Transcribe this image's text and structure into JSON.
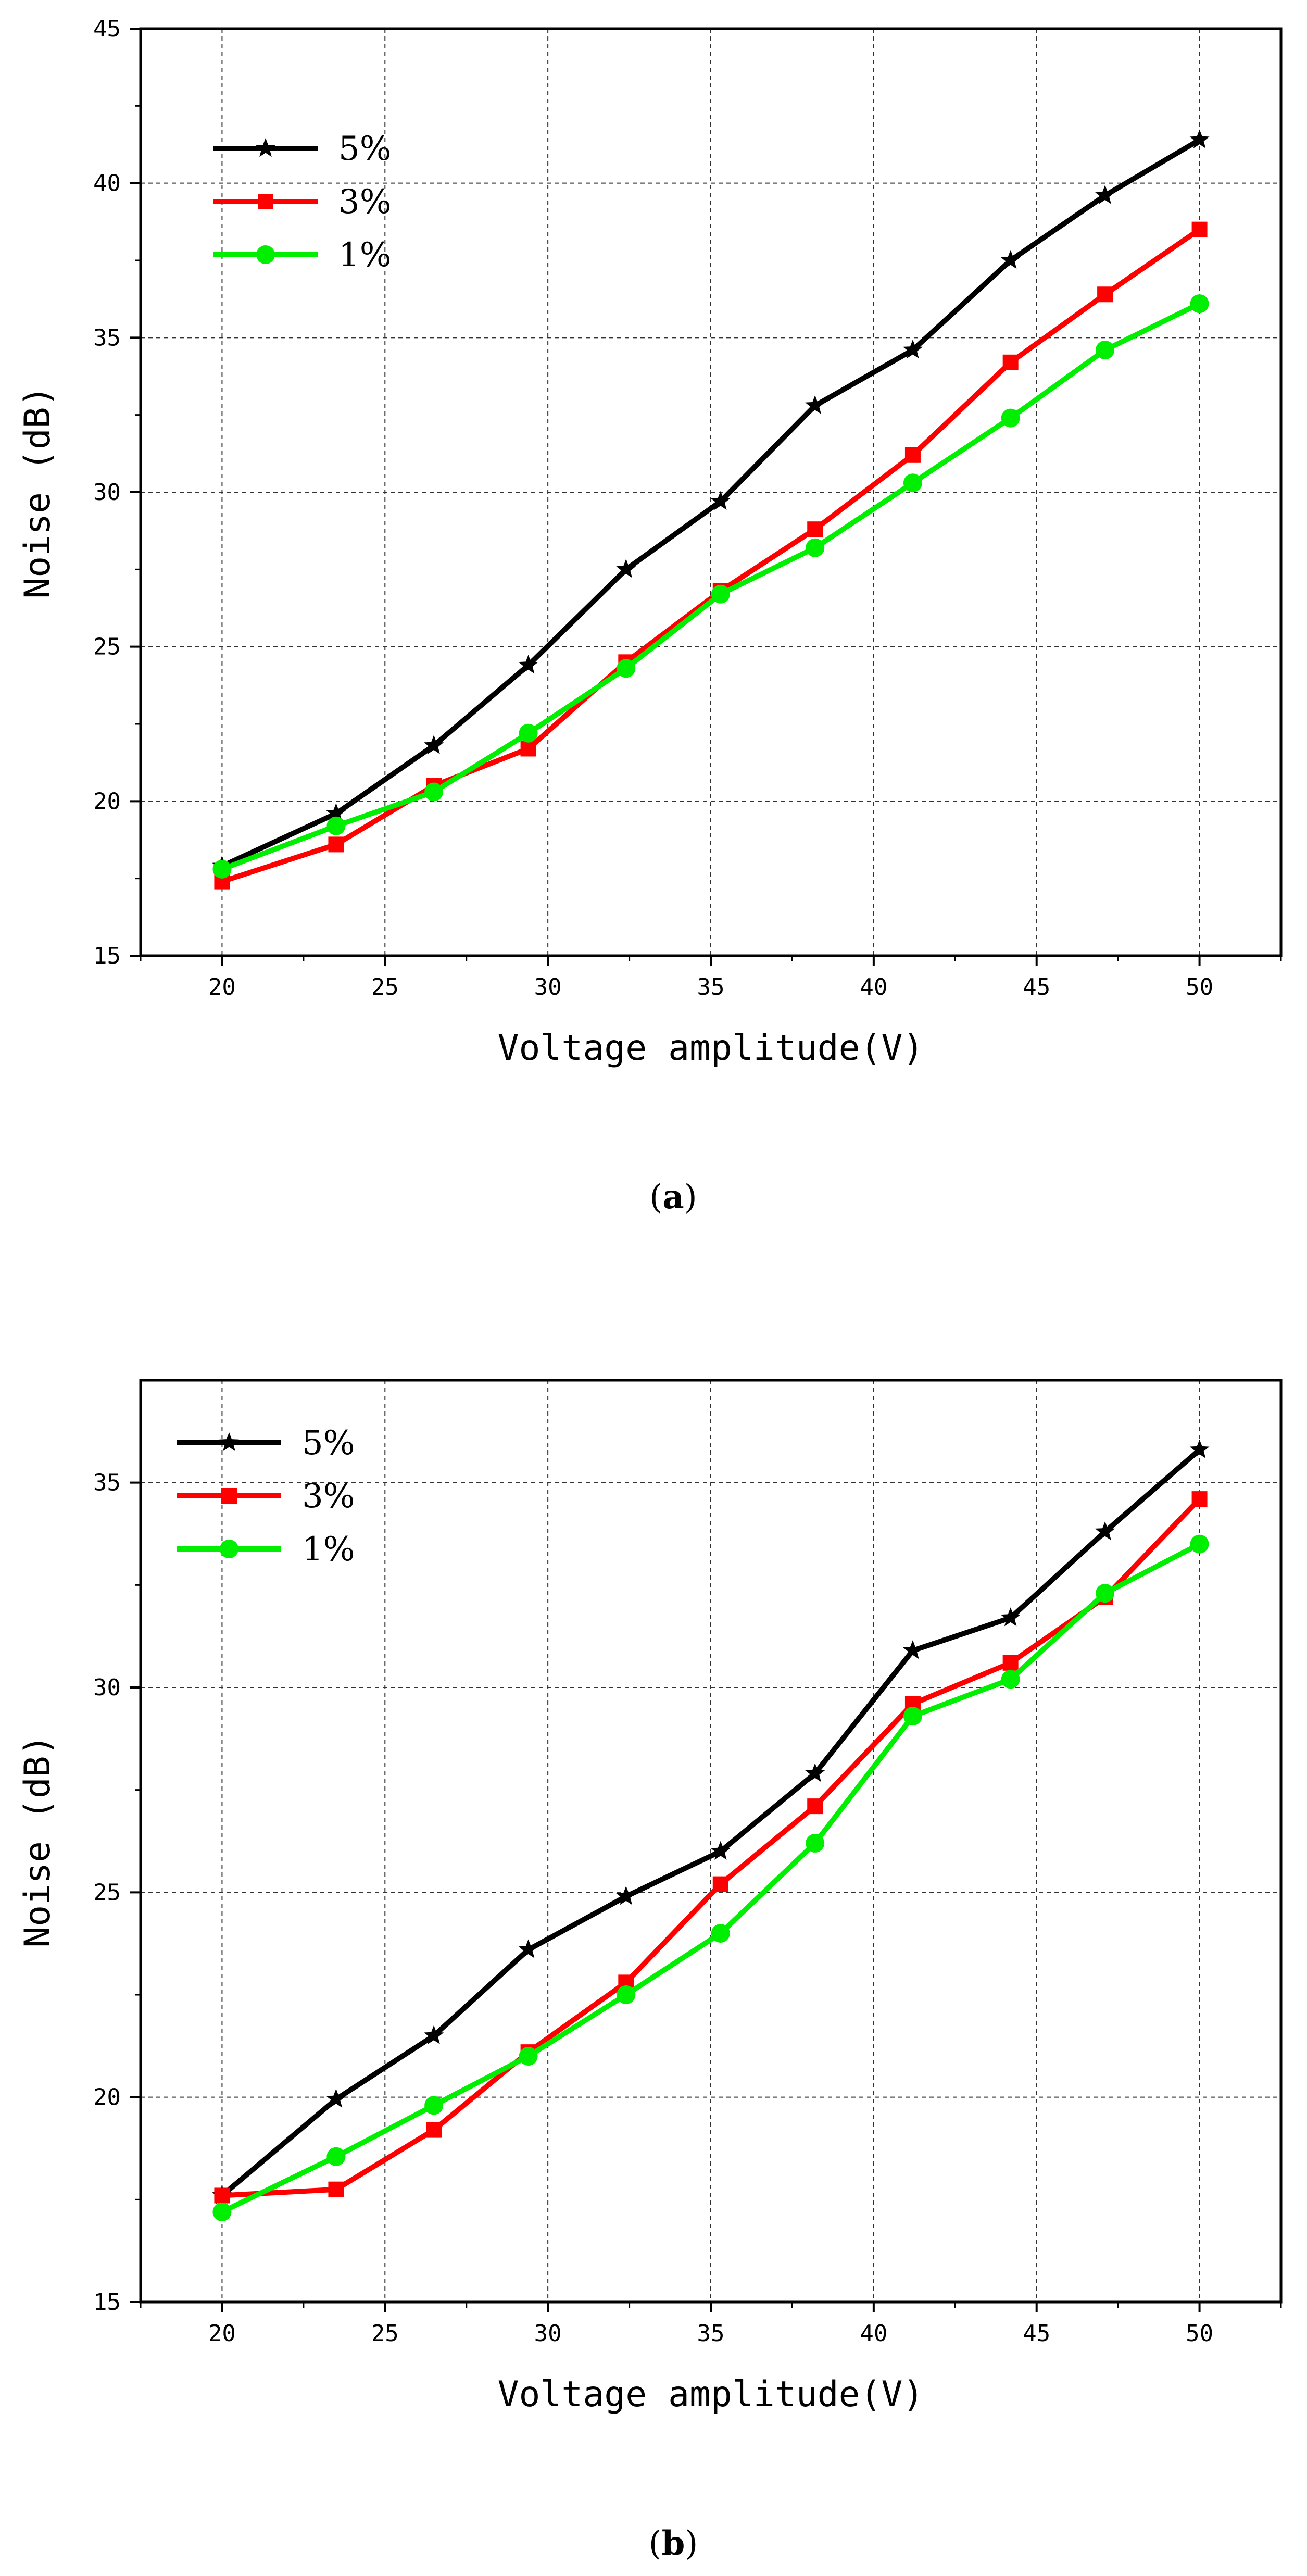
{
  "chart_data": [
    {
      "type": "line",
      "caption_open": "(",
      "caption_letter": "a",
      "caption_close": ")",
      "xlabel": "Voltage amplitude(V)",
      "ylabel": "Noise (dB)",
      "xlim": [
        17.5,
        52.5
      ],
      "ylim": [
        15,
        45
      ],
      "xticks": [
        20,
        25,
        30,
        35,
        40,
        45,
        50
      ],
      "yticks": [
        15,
        20,
        25,
        30,
        35,
        40,
        45
      ],
      "grid": true,
      "legend_position": "top-left",
      "x": [
        20,
        23.5,
        26.5,
        29.4,
        32.4,
        35.3,
        38.2,
        41.2,
        44.2,
        47.1,
        50
      ],
      "series": [
        {
          "name": "5%",
          "color": "#000000",
          "marker": "star",
          "values": [
            17.9,
            19.6,
            21.8,
            24.4,
            27.5,
            29.7,
            32.8,
            34.6,
            37.5,
            39.6,
            41.4
          ]
        },
        {
          "name": "3%",
          "color": "#ff0000",
          "marker": "square",
          "values": [
            17.4,
            18.6,
            20.5,
            21.7,
            24.5,
            26.8,
            28.8,
            31.2,
            34.2,
            36.4,
            38.5
          ]
        },
        {
          "name": "1%",
          "color": "#00ee00",
          "marker": "circle",
          "values": [
            17.8,
            19.2,
            20.3,
            22.2,
            24.3,
            26.7,
            28.2,
            30.3,
            32.4,
            34.6,
            36.1
          ]
        }
      ]
    },
    {
      "type": "line",
      "caption_open": "(",
      "caption_letter": "b",
      "caption_close": ")",
      "xlabel": "Voltage amplitude(V)",
      "ylabel": "Noise (dB)",
      "xlim": [
        17.5,
        52.5
      ],
      "ylim": [
        15,
        37.5
      ],
      "xticks": [
        20,
        25,
        30,
        35,
        40,
        45,
        50
      ],
      "yticks": [
        15,
        20,
        25,
        30,
        35
      ],
      "grid": true,
      "legend_position": "top-left",
      "x": [
        20,
        23.5,
        26.5,
        29.4,
        32.4,
        35.3,
        38.2,
        41.2,
        44.2,
        47.1,
        50
      ],
      "series": [
        {
          "name": "5%",
          "color": "#000000",
          "marker": "star",
          "values": [
            17.6,
            19.95,
            21.5,
            23.6,
            24.9,
            26.0,
            27.9,
            30.9,
            31.7,
            33.8,
            35.8
          ]
        },
        {
          "name": "3%",
          "color": "#ff0000",
          "marker": "square",
          "values": [
            17.6,
            17.75,
            19.2,
            21.1,
            22.8,
            25.2,
            27.1,
            29.6,
            30.6,
            32.2,
            34.6
          ]
        },
        {
          "name": "1%",
          "color": "#00ee00",
          "marker": "circle",
          "values": [
            17.2,
            18.55,
            19.8,
            21.0,
            22.5,
            24.0,
            26.2,
            29.3,
            30.2,
            32.3,
            33.5
          ]
        }
      ]
    }
  ]
}
